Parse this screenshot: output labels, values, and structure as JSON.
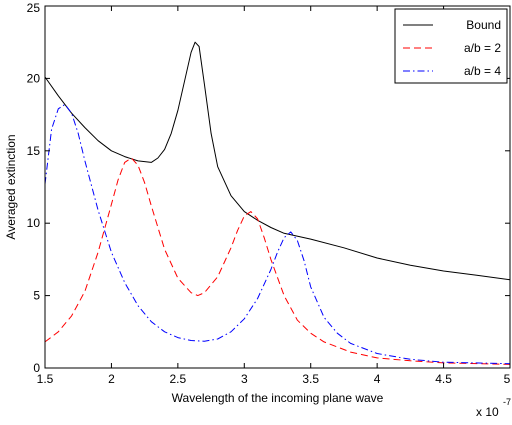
{
  "chart_data": {
    "type": "line",
    "xlabel": "Wavelength of the incoming plane wave",
    "ylabel": "Averaged extinction",
    "x_exponent_label": "x 10",
    "x_exponent_value": "-7",
    "xlim": [
      1.5,
      5.0
    ],
    "ylim": [
      0,
      25
    ],
    "xticks": [
      1.5,
      2,
      2.5,
      3,
      3.5,
      4,
      4.5,
      5
    ],
    "xtick_labels": [
      "1.5",
      "2",
      "2.5",
      "3",
      "3.5",
      "4",
      "4.5",
      "5"
    ],
    "yticks": [
      0,
      5,
      10,
      15,
      20,
      25
    ],
    "ytick_labels": [
      "0",
      "5",
      "10",
      "15",
      "20",
      "25"
    ],
    "grid": false,
    "legend_position": "top-right",
    "series": [
      {
        "name": "Bound",
        "color": "#000000",
        "dash": "solid",
        "x": [
          1.5,
          1.6,
          1.7,
          1.8,
          1.9,
          2.0,
          2.1,
          2.2,
          2.3,
          2.35,
          2.4,
          2.45,
          2.5,
          2.55,
          2.6,
          2.63,
          2.66,
          2.7,
          2.75,
          2.8,
          2.9,
          3.0,
          3.1,
          3.2,
          3.3,
          3.5,
          3.75,
          4.0,
          4.25,
          4.5,
          4.75,
          5.0
        ],
        "y": [
          20.1,
          18.8,
          17.6,
          16.6,
          15.7,
          15.0,
          14.6,
          14.3,
          14.2,
          14.5,
          15.1,
          16.2,
          17.8,
          19.8,
          21.8,
          22.5,
          22.2,
          19.6,
          16.2,
          13.9,
          11.9,
          10.8,
          10.2,
          9.7,
          9.3,
          8.9,
          8.3,
          7.6,
          7.1,
          6.7,
          6.4,
          6.1
        ]
      },
      {
        "name": "a/b = 2",
        "color": "#ff0000",
        "dash": "dashed",
        "x": [
          1.5,
          1.6,
          1.7,
          1.8,
          1.9,
          2.0,
          2.05,
          2.1,
          2.15,
          2.2,
          2.25,
          2.3,
          2.4,
          2.5,
          2.6,
          2.65,
          2.7,
          2.8,
          2.9,
          2.95,
          3.0,
          3.05,
          3.1,
          3.15,
          3.2,
          3.3,
          3.4,
          3.5,
          3.6,
          3.8,
          4.0,
          4.25,
          4.5,
          5.0
        ],
        "y": [
          1.8,
          2.5,
          3.6,
          5.3,
          8.0,
          11.3,
          13.0,
          14.2,
          14.5,
          14.0,
          12.8,
          11.2,
          8.2,
          6.2,
          5.2,
          5.0,
          5.2,
          6.3,
          8.3,
          9.5,
          10.5,
          10.8,
          10.3,
          9.0,
          7.5,
          5.0,
          3.3,
          2.4,
          1.8,
          1.1,
          0.7,
          0.5,
          0.35,
          0.25
        ]
      },
      {
        "name": "a/b = 4",
        "color": "#0000ff",
        "dash": "dashdot",
        "x": [
          1.5,
          1.55,
          1.6,
          1.65,
          1.7,
          1.75,
          1.8,
          1.9,
          2.0,
          2.1,
          2.2,
          2.3,
          2.4,
          2.5,
          2.6,
          2.7,
          2.8,
          2.9,
          3.0,
          3.1,
          3.2,
          3.25,
          3.3,
          3.35,
          3.4,
          3.45,
          3.5,
          3.6,
          3.7,
          3.8,
          4.0,
          4.25,
          4.5,
          5.0
        ],
        "y": [
          12.7,
          16.5,
          17.9,
          18.2,
          17.6,
          16.2,
          14.3,
          10.9,
          8.0,
          5.9,
          4.3,
          3.2,
          2.5,
          2.1,
          1.9,
          1.85,
          2.0,
          2.5,
          3.4,
          4.8,
          6.8,
          8.0,
          9.0,
          9.4,
          8.8,
          7.4,
          5.6,
          3.5,
          2.4,
          1.7,
          1.0,
          0.6,
          0.4,
          0.3
        ]
      }
    ]
  }
}
